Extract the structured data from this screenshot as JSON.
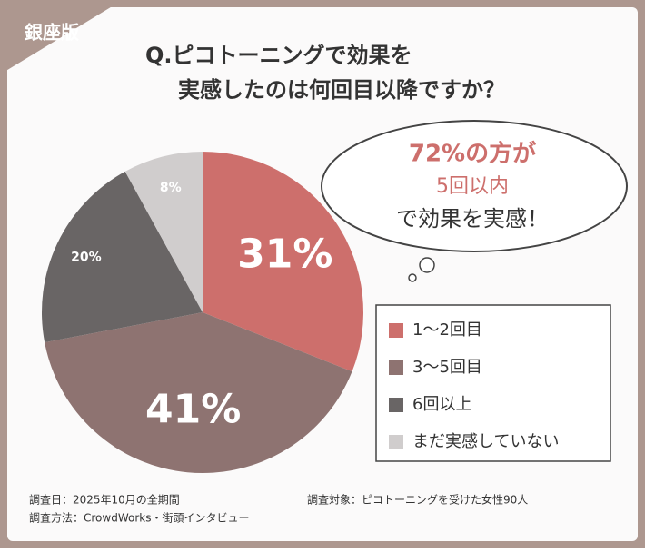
{
  "badge": "銀座版",
  "chart_data": {
    "type": "pie",
    "title": [
      "Q.ピコトーニングで効果を",
      "実感したのは何回目以降ですか？"
    ],
    "categories": [
      "1〜2回目",
      "3〜5回目",
      "6回以上",
      "まだ実感していない"
    ],
    "values": [
      31,
      41,
      20,
      8
    ],
    "value_labels": [
      "31%",
      "41%",
      "20%",
      "8%"
    ],
    "colors": [
      "#cd6f6c",
      "#8e7371",
      "#696565",
      "#d0cdcd"
    ],
    "annotation": [
      "72%の方が",
      "5回以内",
      "で効果を実感！"
    ]
  },
  "footer": {
    "date": "調査日：2025年10月の全期間",
    "method": "調査方法：CrowdWorks・街頭インタビュー",
    "subject": "調査対象：ピコトーニングを受けた女性90人"
  }
}
